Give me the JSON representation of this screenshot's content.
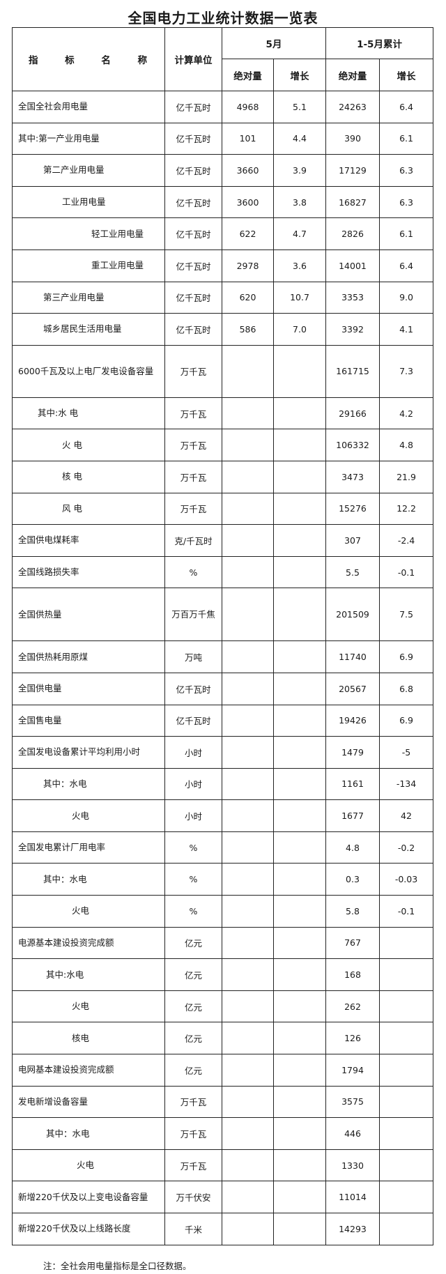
{
  "title": "全国电力工业统计数据一览表",
  "header": {
    "name": "指 标 名 称",
    "unit": "计算单位",
    "month": "5月",
    "cumulative": "1-5月累计",
    "absolute": "绝对量",
    "growth": "增长"
  },
  "rows": [
    {
      "name": "全国全社会用电量",
      "unit": "亿千瓦时",
      "m_abs": "4968",
      "m_growth": "5.1",
      "c_abs": "24263",
      "c_growth": "6.4"
    },
    {
      "name": "其中:第一产业用电量",
      "unit": "亿千瓦时",
      "m_abs": "101",
      "m_growth": "4.4",
      "c_abs": "390",
      "c_growth": "6.1"
    },
    {
      "name": "第二产业用电量",
      "unit": "亿千瓦时",
      "m_abs": "3660",
      "m_growth": "3.9",
      "c_abs": "17129",
      "c_growth": "6.3"
    },
    {
      "name": "工业用电量",
      "unit": "亿千瓦时",
      "m_abs": "3600",
      "m_growth": "3.8",
      "c_abs": "16827",
      "c_growth": "6.3"
    },
    {
      "name": "轻工业用电量",
      "unit": "亿千瓦时",
      "m_abs": "622",
      "m_growth": "4.7",
      "c_abs": "2826",
      "c_growth": "6.1"
    },
    {
      "name": "重工业用电量",
      "unit": "亿千瓦时",
      "m_abs": "2978",
      "m_growth": "3.6",
      "c_abs": "14001",
      "c_growth": "6.4"
    },
    {
      "name": "第三产业用电量",
      "unit": "亿千瓦时",
      "m_abs": "620",
      "m_growth": "10.7",
      "c_abs": "3353",
      "c_growth": "9.0"
    },
    {
      "name": "城乡居民生活用电量",
      "unit": "亿千瓦时",
      "m_abs": "586",
      "m_growth": "7.0",
      "c_abs": "3392",
      "c_growth": "4.1"
    },
    {
      "name": "6000千瓦及以上电厂发电设备容量",
      "unit": "万千瓦",
      "m_abs": "",
      "m_growth": "",
      "c_abs": "161715",
      "c_growth": "7.3"
    },
    {
      "name": "其中:水 电",
      "unit": "万千瓦",
      "m_abs": "",
      "m_growth": "",
      "c_abs": "29166",
      "c_growth": "4.2"
    },
    {
      "name": "火 电",
      "unit": "万千瓦",
      "m_abs": "",
      "m_growth": "",
      "c_abs": "106332",
      "c_growth": "4.8"
    },
    {
      "name": "核 电",
      "unit": "万千瓦",
      "m_abs": "",
      "m_growth": "",
      "c_abs": "3473",
      "c_growth": "21.9"
    },
    {
      "name": "风 电",
      "unit": "万千瓦",
      "m_abs": "",
      "m_growth": "",
      "c_abs": "15276",
      "c_growth": "12.2"
    },
    {
      "name": "全国供电煤耗率",
      "unit": "克/千瓦时",
      "m_abs": "",
      "m_growth": "",
      "c_abs": "307",
      "c_growth": "-2.4"
    },
    {
      "name": "全国线路损失率",
      "unit": "%",
      "m_abs": "",
      "m_growth": "",
      "c_abs": "5.5",
      "c_growth": "-0.1"
    },
    {
      "name": "全国供热量",
      "unit": "万百万千焦",
      "m_abs": "",
      "m_growth": "",
      "c_abs": "201509",
      "c_growth": "7.5"
    },
    {
      "name": "全国供热耗用原煤",
      "unit": "万吨",
      "m_abs": "",
      "m_growth": "",
      "c_abs": "11740",
      "c_growth": "6.9"
    },
    {
      "name": "全国供电量",
      "unit": "亿千瓦时",
      "m_abs": "",
      "m_growth": "",
      "c_abs": "20567",
      "c_growth": "6.8"
    },
    {
      "name": "全国售电量",
      "unit": "亿千瓦时",
      "m_abs": "",
      "m_growth": "",
      "c_abs": "19426",
      "c_growth": "6.9"
    },
    {
      "name": "全国发电设备累计平均利用小时",
      "unit": "小时",
      "m_abs": "",
      "m_growth": "",
      "c_abs": "1479",
      "c_growth": "-5"
    },
    {
      "name": "其中：水电",
      "unit": "小时",
      "m_abs": "",
      "m_growth": "",
      "c_abs": "1161",
      "c_growth": "-134"
    },
    {
      "name": "火电",
      "unit": "小时",
      "m_abs": "",
      "m_growth": "",
      "c_abs": "1677",
      "c_growth": "42"
    },
    {
      "name": "全国发电累计厂用电率",
      "unit": "%",
      "m_abs": "",
      "m_growth": "",
      "c_abs": "4.8",
      "c_growth": "-0.2"
    },
    {
      "name": "其中：水电",
      "unit": "%",
      "m_abs": "",
      "m_growth": "",
      "c_abs": "0.3",
      "c_growth": "-0.03"
    },
    {
      "name": "火电",
      "unit": "%",
      "m_abs": "",
      "m_growth": "",
      "c_abs": "5.8",
      "c_growth": "-0.1"
    },
    {
      "name": "电源基本建设投资完成额",
      "unit": "亿元",
      "m_abs": "",
      "m_growth": "",
      "c_abs": "767",
      "c_growth": ""
    },
    {
      "name": "其中:水电",
      "unit": "亿元",
      "m_abs": "",
      "m_growth": "",
      "c_abs": "168",
      "c_growth": ""
    },
    {
      "name": "火电",
      "unit": "亿元",
      "m_abs": "",
      "m_growth": "",
      "c_abs": "262",
      "c_growth": ""
    },
    {
      "name": "核电",
      "unit": "亿元",
      "m_abs": "",
      "m_growth": "",
      "c_abs": "126",
      "c_growth": ""
    },
    {
      "name": "电网基本建设投资完成额",
      "unit": "亿元",
      "m_abs": "",
      "m_growth": "",
      "c_abs": "1794",
      "c_growth": ""
    },
    {
      "name": "发电新增设备容量",
      "unit": "万千瓦",
      "m_abs": "",
      "m_growth": "",
      "c_abs": "3575",
      "c_growth": ""
    },
    {
      "name": "其中：水电",
      "unit": "万千瓦",
      "m_abs": "",
      "m_growth": "",
      "c_abs": "446",
      "c_growth": ""
    },
    {
      "name": "火电",
      "unit": "万千瓦",
      "m_abs": "",
      "m_growth": "",
      "c_abs": "1330",
      "c_growth": ""
    },
    {
      "name": "新增220千伏及以上变电设备容量",
      "unit": "万千伏安",
      "m_abs": "",
      "m_growth": "",
      "c_abs": "11014",
      "c_growth": ""
    },
    {
      "name": "新增220千伏及以上线路长度",
      "unit": "千米",
      "m_abs": "",
      "m_growth": "",
      "c_abs": "14293",
      "c_growth": ""
    }
  ],
  "note": "注：全社会用电量指标是全口径数据。"
}
